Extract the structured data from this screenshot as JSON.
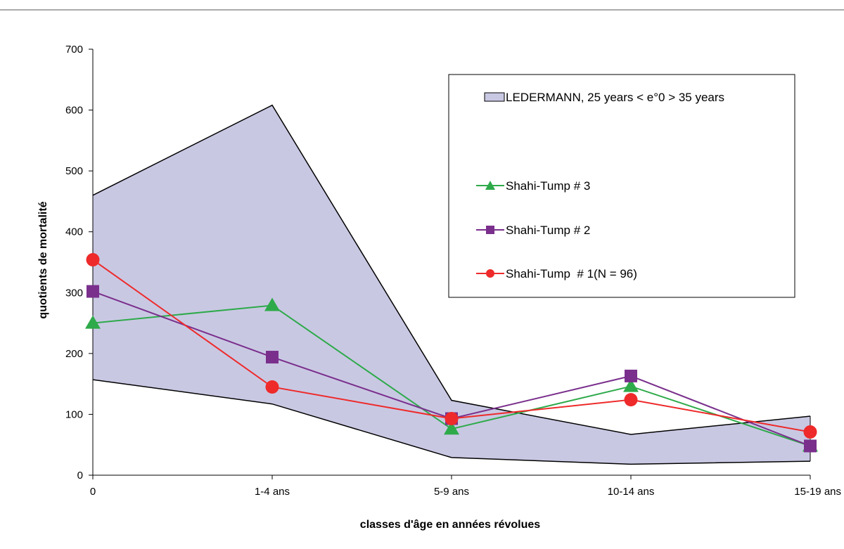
{
  "chart_data": {
    "type": "line",
    "title": "",
    "xlabel": "classes d'âge en années révolues",
    "ylabel": "quotients de mortalité",
    "categories": [
      "0",
      "1-4 ans",
      "5-9 ans",
      "10-14 ans",
      "15-19 ans"
    ],
    "ylim": [
      0,
      700
    ],
    "yticks": [
      "0",
      "100",
      "200",
      "300",
      "400",
      "500",
      "600",
      "700"
    ],
    "grid": false,
    "legend_position": "top-right",
    "band": {
      "name": "LEDERMANN, 25 years < e°0 > 35 years",
      "upper": [
        460,
        608,
        123,
        67,
        97
      ],
      "lower": [
        157,
        117,
        29,
        18,
        23
      ],
      "color": "#c9c8e3"
    },
    "series": [
      {
        "name": "Shahi-Tump # 3",
        "values": [
          250,
          279,
          76,
          146,
          48
        ],
        "color": "#2eaa4a",
        "marker": "triangle"
      },
      {
        "name": "Shahi-Tump # 2",
        "values": [
          302,
          194,
          93,
          163,
          48
        ],
        "color": "#7a2f8c",
        "marker": "square"
      },
      {
        "name": "Shahi-Tump  # 1(N = 96)",
        "values": [
          354,
          145,
          93,
          124,
          71
        ],
        "color": "#ee2a2a",
        "marker": "circle"
      }
    ]
  }
}
